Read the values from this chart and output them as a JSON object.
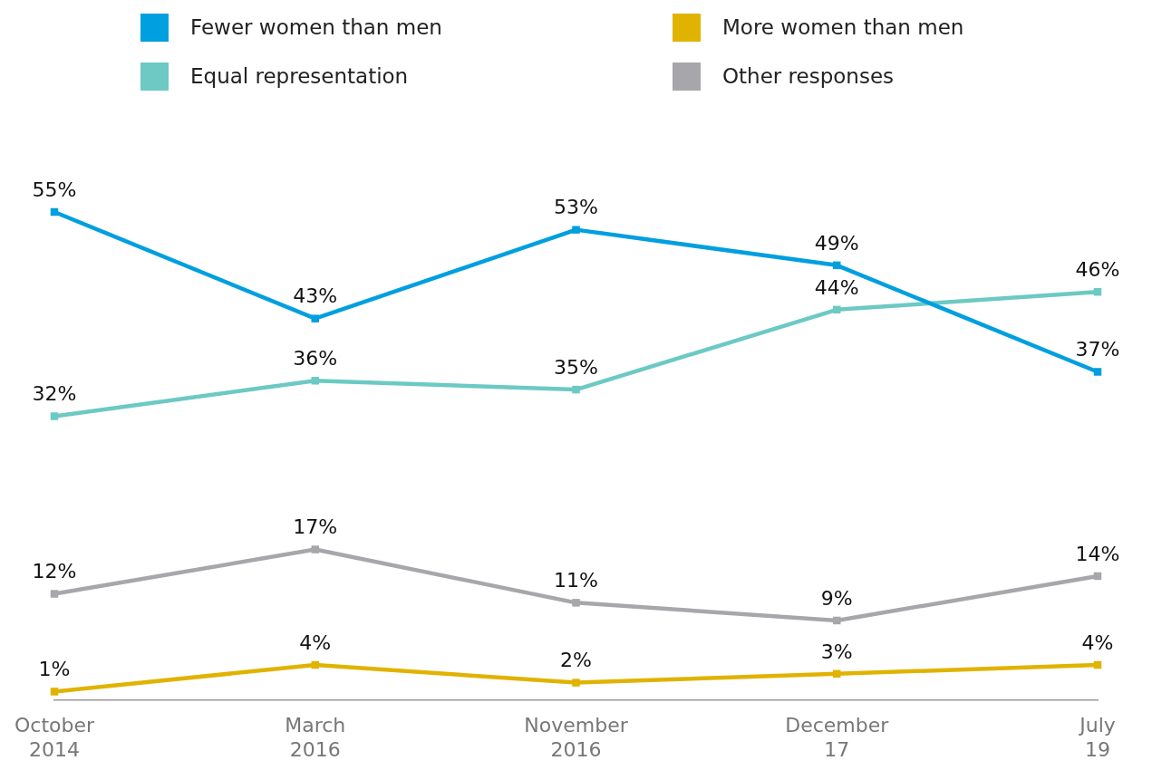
{
  "chart_data": {
    "type": "line",
    "categories": [
      "October 2014",
      "March 2016",
      "November 2016",
      "December 17",
      "July 19"
    ],
    "series": [
      {
        "name": "Fewer women than men",
        "color": "#009fdf",
        "values": [
          55,
          43,
          53,
          49,
          37
        ],
        "value_labels": [
          "55%",
          "43%",
          "53%",
          "49%",
          "37%"
        ]
      },
      {
        "name": "Equal representation",
        "color": "#6cc9c4",
        "values": [
          32,
          36,
          35,
          44,
          46
        ],
        "value_labels": [
          "32%",
          "36%",
          "35%",
          "44%",
          "46%"
        ]
      },
      {
        "name": "More women than men",
        "color": "#e0b300",
        "values": [
          1,
          4,
          2,
          3,
          4
        ],
        "value_labels": [
          "1%",
          "4%",
          "2%",
          "3%",
          "4%"
        ]
      },
      {
        "name": "Other responses",
        "color": "#a7a7ab",
        "values": [
          12,
          17,
          11,
          9,
          14
        ],
        "value_labels": [
          "12%",
          "17%",
          "11%",
          "9%",
          "14%"
        ]
      }
    ],
    "marker": "square",
    "legend": "top",
    "grid": false,
    "tick_labels": "x",
    "line_style": "solid"
  }
}
